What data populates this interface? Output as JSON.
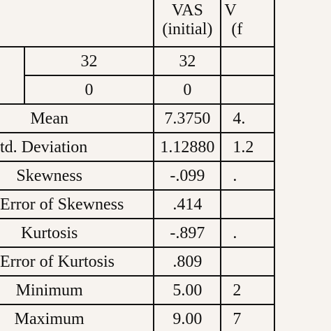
{
  "table": {
    "columns": [
      {
        "line1": "VAS",
        "line2": "(initial)"
      },
      {
        "line1": "V",
        "line2": "(f"
      }
    ],
    "n_rows": [
      {
        "cells": [
          "32",
          "32"
        ]
      },
      {
        "cells": [
          "0",
          "0"
        ]
      }
    ],
    "stat_rows": [
      {
        "label": "Mean",
        "value": "7.3750",
        "clipped": "4."
      },
      {
        "label": "td. Deviation",
        "value": "1.12880",
        "clipped": "1.2"
      },
      {
        "label": "Skewness",
        "value": "-.099",
        "clipped": "."
      },
      {
        "label": "Error of Skewness",
        "value": ".414",
        "clipped": ""
      },
      {
        "label": "Kurtosis",
        "value": "-.897",
        "clipped": "."
      },
      {
        "label": "Error of Kurtosis",
        "value": ".809",
        "clipped": ""
      },
      {
        "label": "Minimum",
        "value": "5.00",
        "clipped": "2"
      },
      {
        "label": "Maximum",
        "value": "9.00",
        "clipped": "7"
      }
    ]
  }
}
